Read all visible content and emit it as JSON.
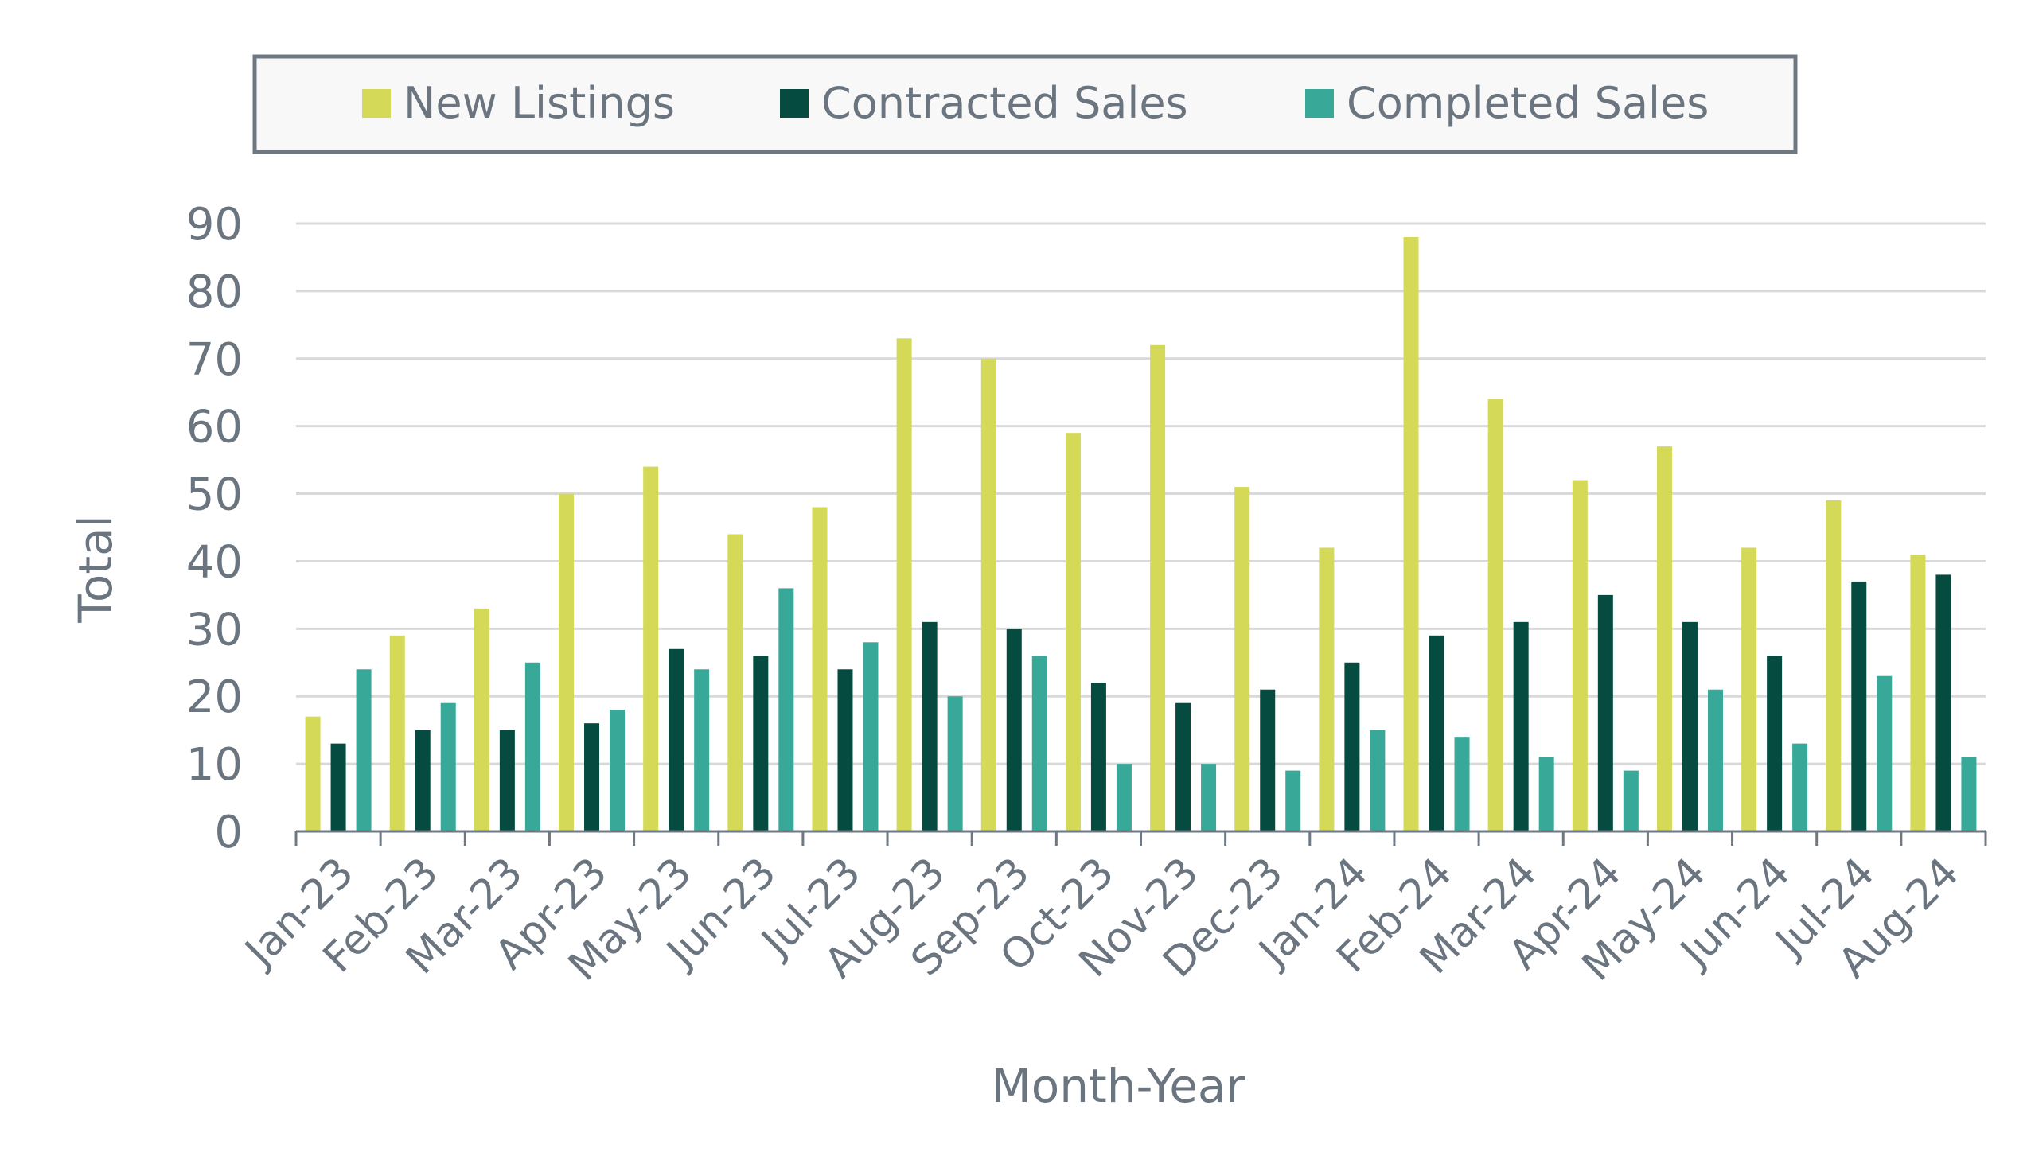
{
  "chart_data": {
    "type": "bar",
    "title": "",
    "xlabel": "Month-Year",
    "ylabel": "Total",
    "ylim": [
      0,
      90
    ],
    "yticks": [
      0,
      10,
      20,
      30,
      40,
      50,
      60,
      70,
      80,
      90
    ],
    "grid": true,
    "legend_position": "top",
    "categories": [
      "Jan-23",
      "Feb-23",
      "Mar-23",
      "Apr-23",
      "May-23",
      "Jun-23",
      "Jul-23",
      "Aug-23",
      "Sep-23",
      "Oct-23",
      "Nov-23",
      "Dec-23",
      "Jan-24",
      "Feb-24",
      "Mar-24",
      "Apr-24",
      "May-24",
      "Jun-24",
      "Jul-24",
      "Aug-24"
    ],
    "series": [
      {
        "name": "New Listings",
        "color": "#d4d957",
        "values": [
          17,
          29,
          33,
          50,
          54,
          44,
          48,
          73,
          70,
          59,
          72,
          51,
          42,
          88,
          64,
          52,
          57,
          42,
          49,
          41
        ]
      },
      {
        "name": "Contracted Sales",
        "color": "#064b40",
        "values": [
          13,
          15,
          15,
          16,
          27,
          26,
          24,
          31,
          30,
          22,
          19,
          21,
          25,
          29,
          31,
          35,
          31,
          26,
          37,
          38
        ]
      },
      {
        "name": "Completed Sales",
        "color": "#38a898",
        "values": [
          24,
          19,
          25,
          18,
          24,
          36,
          28,
          20,
          26,
          10,
          10,
          9,
          15,
          14,
          11,
          9,
          21,
          13,
          23,
          11
        ]
      }
    ]
  }
}
